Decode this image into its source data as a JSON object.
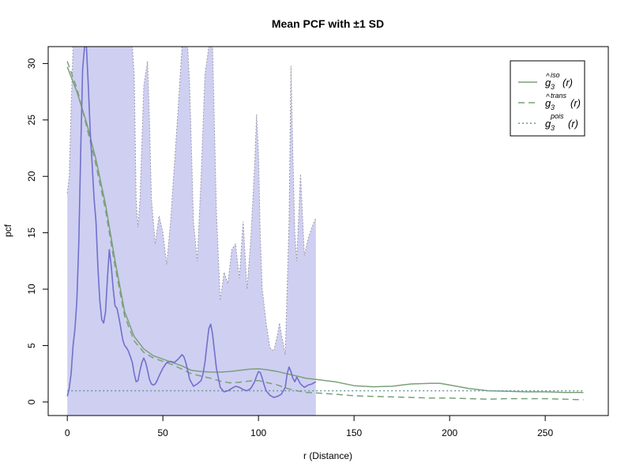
{
  "chart_data": {
    "type": "line",
    "title": "Mean PCF with ±1 SD",
    "xlabel": "r (Distance)",
    "ylabel": "pcf",
    "xlim": [
      -10,
      283
    ],
    "ylim": [
      -1.2,
      31.5
    ],
    "x_ticks": [
      0,
      50,
      100,
      150,
      200,
      250
    ],
    "y_ticks": [
      0,
      5,
      10,
      15,
      20,
      25,
      30
    ],
    "legend_position": "top-right",
    "colors": {
      "iso": "#7aa07a",
      "trans": "#7aa07a",
      "pois": "#6a9a9a",
      "mean": "#7070cc",
      "band_fill": "#cfcff2",
      "band_edge": "#9a9aaa"
    },
    "legend": [
      {
        "key": "iso",
        "base": "g",
        "sub": "3",
        "sup": "iso",
        "hat": true,
        "arg": "(r)",
        "dash": "none"
      },
      {
        "key": "trans",
        "base": "g",
        "sub": "3",
        "sup": "trans",
        "hat": true,
        "arg": "(r)",
        "dash": "8,5"
      },
      {
        "key": "pois",
        "base": "g",
        "sub": "3",
        "sup": "pois",
        "hat": false,
        "arg": "(r)",
        "dash": "2,3"
      }
    ],
    "band_upper": {
      "x": [
        0,
        1,
        2,
        3,
        4,
        5,
        6,
        8,
        10,
        12,
        16,
        20,
        24,
        30,
        33,
        34,
        35,
        36,
        37,
        38,
        40,
        42,
        43,
        44,
        46,
        48,
        50,
        52,
        54,
        56,
        58,
        60,
        61,
        62,
        63,
        64,
        66,
        68,
        70,
        72,
        74,
        76,
        78,
        80,
        82,
        84,
        86,
        88,
        90,
        92,
        94,
        96,
        98,
        99,
        100,
        101,
        102,
        104,
        106,
        108,
        110,
        111,
        112,
        114,
        116,
        117,
        118,
        119,
        120,
        122,
        124,
        126,
        128,
        130
      ],
      "y": [
        18.5,
        20,
        26,
        31.5,
        31.5,
        31.5,
        31.5,
        31.5,
        31.5,
        31.5,
        31.5,
        31.5,
        31.5,
        31.5,
        31.5,
        31.5,
        29,
        18,
        15.5,
        18,
        28,
        30.2,
        25,
        18,
        14,
        16.5,
        15,
        12.2,
        16,
        21,
        26,
        31.5,
        31.5,
        31.5,
        31.5,
        28,
        16,
        12.5,
        20,
        29,
        31.5,
        31.5,
        17,
        9,
        11.5,
        10.5,
        13.5,
        14,
        11,
        16,
        10,
        14.5,
        21,
        25.5,
        22,
        14.5,
        10,
        7,
        4.8,
        4.5,
        6,
        7,
        6,
        4.2,
        16,
        29.8,
        22,
        15,
        12.5,
        20.2,
        13,
        14.5,
        15.5,
        16.3
      ]
    },
    "series": [
      {
        "key": "iso",
        "x": [
          0,
          5,
          10,
          15,
          20,
          25,
          30,
          35,
          40,
          45,
          50,
          55,
          60,
          65,
          70,
          75,
          80,
          85,
          90,
          95,
          100,
          105,
          110,
          115,
          120,
          125,
          130,
          140,
          150,
          160,
          170,
          180,
          190,
          195,
          200,
          210,
          220,
          230,
          240,
          250,
          260,
          270
        ],
        "y": [
          29.7,
          27.5,
          24.8,
          21.5,
          17.5,
          12.5,
          8,
          5.8,
          4.7,
          4.1,
          3.8,
          3.5,
          3.2,
          2.8,
          2.7,
          2.65,
          2.65,
          2.7,
          2.8,
          2.9,
          2.95,
          2.85,
          2.7,
          2.5,
          2.3,
          2.1,
          2.0,
          1.8,
          1.45,
          1.35,
          1.4,
          1.6,
          1.65,
          1.65,
          1.5,
          1.2,
          1.0,
          0.95,
          0.9,
          0.9,
          0.85,
          0.85
        ]
      },
      {
        "key": "trans",
        "x": [
          0,
          5,
          10,
          15,
          20,
          25,
          30,
          35,
          40,
          45,
          50,
          55,
          60,
          65,
          70,
          75,
          80,
          85,
          90,
          95,
          100,
          105,
          110,
          115,
          120,
          125,
          130,
          140,
          150,
          160,
          170,
          180,
          190,
          200,
          210,
          220,
          230,
          240,
          250,
          260,
          270
        ],
        "y": [
          30.2,
          27.8,
          24.5,
          21,
          17,
          12,
          7.6,
          5.4,
          4.4,
          3.9,
          3.6,
          3.3,
          2.9,
          2.5,
          2.3,
          2.1,
          1.85,
          1.7,
          1.75,
          1.85,
          1.9,
          1.7,
          1.5,
          1.2,
          1.0,
          0.85,
          0.8,
          0.7,
          0.55,
          0.5,
          0.45,
          0.4,
          0.35,
          0.35,
          0.3,
          0.25,
          0.3,
          0.3,
          0.3,
          0.25,
          0.2
        ]
      },
      {
        "key": "pois",
        "x": [
          0,
          270
        ],
        "y": [
          1.0,
          1.0
        ]
      },
      {
        "key": "mean",
        "x": [
          0,
          1,
          2,
          3,
          4,
          5,
          6,
          7,
          8,
          9,
          10,
          11,
          12,
          13,
          14,
          15,
          16,
          17,
          18,
          19,
          20,
          21,
          22,
          23,
          24,
          25,
          26,
          27,
          28,
          29,
          30,
          31,
          32,
          33,
          34,
          35,
          36,
          37,
          38,
          39,
          40,
          41,
          42,
          43,
          44,
          45,
          46,
          47,
          48,
          50,
          52,
          54,
          56,
          58,
          59,
          60,
          61,
          62,
          63,
          64,
          66,
          68,
          70,
          71,
          72,
          73,
          74,
          75,
          76,
          77,
          78,
          80,
          82,
          84,
          86,
          88,
          90,
          92,
          94,
          96,
          98,
          99,
          100,
          101,
          102,
          103,
          104,
          106,
          108,
          110,
          112,
          114,
          115,
          116,
          117,
          118,
          119,
          120,
          122,
          124,
          126,
          128,
          130
        ],
        "y": [
          0.5,
          1.2,
          2.5,
          5,
          6.5,
          9,
          14,
          22,
          29.5,
          31.5,
          31.5,
          28,
          24,
          21,
          18,
          16,
          12,
          9,
          7.3,
          7,
          8,
          11,
          13.5,
          12,
          10,
          8.5,
          8.3,
          7.5,
          6.5,
          5.5,
          5,
          4.8,
          4.5,
          4,
          3.5,
          2.5,
          1.8,
          1.9,
          2.8,
          3.5,
          3.9,
          3.5,
          2.8,
          2.0,
          1.6,
          1.5,
          1.6,
          1.9,
          2.3,
          3.0,
          3.5,
          3.6,
          3.5,
          3.8,
          4.0,
          4.2,
          4.0,
          3.5,
          2.8,
          2.0,
          1.4,
          1.6,
          1.9,
          2.5,
          3.5,
          5,
          6.5,
          6.9,
          6.0,
          4.5,
          3.0,
          1.3,
          0.9,
          1.0,
          1.2,
          1.4,
          1.3,
          1.1,
          1.0,
          1.2,
          1.8,
          2.3,
          2.7,
          2.6,
          2.1,
          1.5,
          1.0,
          0.6,
          0.4,
          0.5,
          0.7,
          1.3,
          2.5,
          3.1,
          2.7,
          2.1,
          1.8,
          2.2,
          1.6,
          1.3,
          1.5,
          1.6,
          1.8
        ]
      }
    ]
  }
}
